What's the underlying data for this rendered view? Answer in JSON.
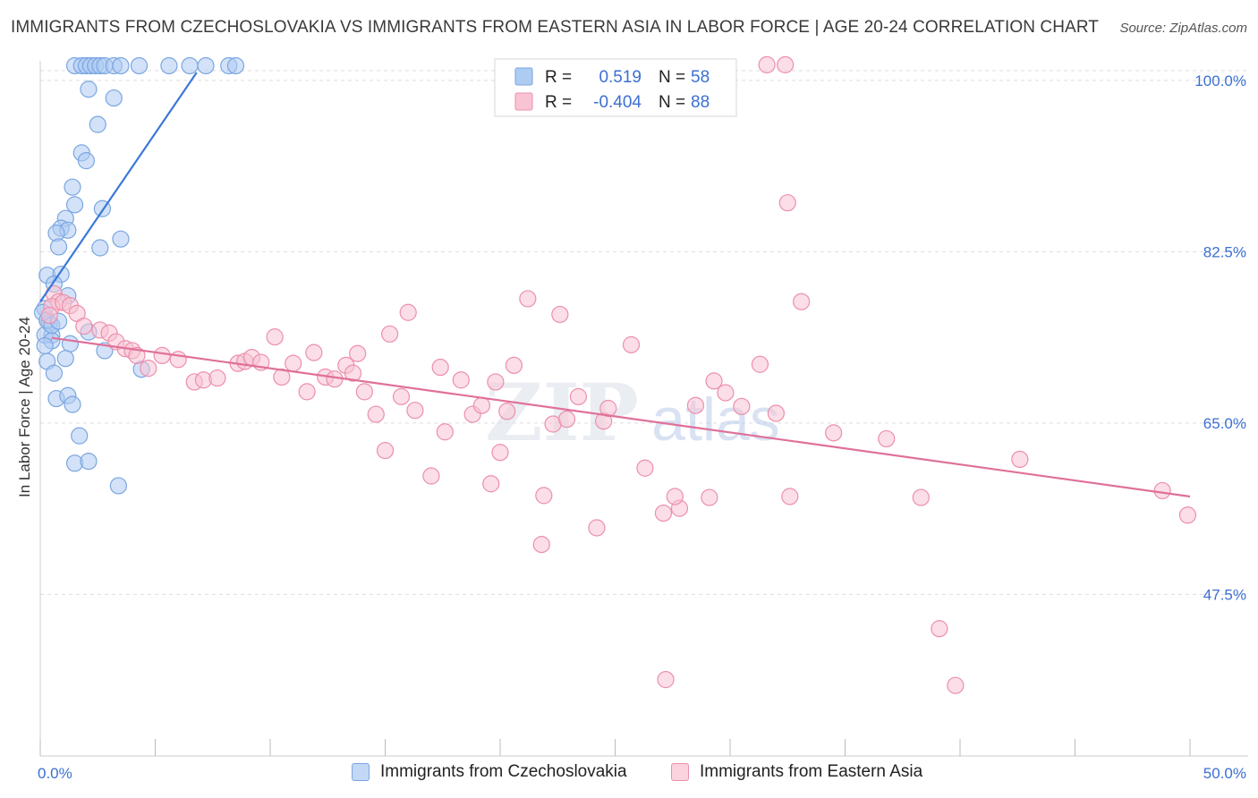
{
  "title": "IMMIGRANTS FROM CZECHOSLOVAKIA VS IMMIGRANTS FROM EASTERN ASIA IN LABOR FORCE | AGE 20-24 CORRELATION CHART",
  "source": "Source: ZipAtlas.com",
  "watermark": {
    "zip": "ZIP",
    "atlas": "atlas"
  },
  "legend": {
    "r_label": "R =",
    "n_label": "N =",
    "rows": [
      {
        "r": "0.519",
        "n": "58",
        "fill": "#aecbf2",
        "stroke": "#7aa6e0"
      },
      {
        "r": "-0.404",
        "n": "88",
        "fill": "#f8c3d3",
        "stroke": "#ec8fac"
      }
    ]
  },
  "bottom_legend": [
    {
      "label": "Immigrants from Czechoslovakia",
      "fill": "#c3d8f5",
      "stroke": "#7aa6e0"
    },
    {
      "label": "Immigrants from Eastern Asia",
      "fill": "#fbd3df",
      "stroke": "#ec8fac"
    }
  ],
  "chart_data": {
    "type": "scatter",
    "title": "IMMIGRANTS FROM CZECHOSLOVAKIA VS IMMIGRANTS FROM EASTERN ASIA IN LABOR FORCE | AGE 20-24 CORRELATION CHART",
    "xlabel": "",
    "ylabel": "In Labor Force | Age 20-24",
    "xlim": [
      0,
      50
    ],
    "ylim": [
      31,
      102
    ],
    "x_tick_labels": [
      "0.0%",
      "50.0%"
    ],
    "y_ticks": [
      47.5,
      65.0,
      82.5,
      100.0
    ],
    "y_tick_labels": [
      "47.5%",
      "65.0%",
      "82.5%",
      "100.0%"
    ],
    "grid": true,
    "legend_position": "top-center",
    "colors": {
      "czechoslovakia": "#3b78d8",
      "eastern_asia": "#e0709a",
      "axis_text": "#3b6fd0"
    },
    "series": [
      {
        "name": "Immigrants from Czechoslovakia",
        "r": 0.519,
        "n": 58,
        "trend": {
          "x": [
            0.0,
            6.8
          ],
          "y": [
            77.4,
            100.8
          ]
        },
        "points": [
          [
            1.5,
            101.5
          ],
          [
            1.8,
            101.5
          ],
          [
            2.0,
            101.5
          ],
          [
            2.2,
            101.5
          ],
          [
            2.4,
            101.5
          ],
          [
            2.6,
            101.5
          ],
          [
            2.8,
            101.5
          ],
          [
            3.2,
            101.5
          ],
          [
            3.5,
            101.5
          ],
          [
            4.3,
            101.5
          ],
          [
            5.6,
            101.5
          ],
          [
            6.5,
            101.5
          ],
          [
            7.2,
            101.5
          ],
          [
            8.2,
            101.5
          ],
          [
            8.5,
            101.5
          ],
          [
            2.1,
            99.1
          ],
          [
            3.2,
            98.2
          ],
          [
            2.5,
            95.5
          ],
          [
            1.8,
            92.6
          ],
          [
            2.0,
            91.8
          ],
          [
            1.4,
            89.1
          ],
          [
            1.5,
            87.3
          ],
          [
            2.7,
            86.9
          ],
          [
            1.1,
            85.9
          ],
          [
            0.9,
            84.9
          ],
          [
            1.2,
            84.7
          ],
          [
            0.7,
            84.4
          ],
          [
            3.5,
            83.8
          ],
          [
            0.8,
            83.0
          ],
          [
            2.6,
            82.9
          ],
          [
            0.3,
            80.1
          ],
          [
            0.9,
            80.2
          ],
          [
            0.6,
            79.2
          ],
          [
            1.2,
            78.0
          ],
          [
            0.2,
            76.7
          ],
          [
            0.1,
            76.3
          ],
          [
            0.4,
            75.2
          ],
          [
            2.1,
            74.3
          ],
          [
            0.5,
            74.0
          ],
          [
            0.2,
            74.0
          ],
          [
            0.5,
            73.4
          ],
          [
            1.3,
            73.1
          ],
          [
            2.8,
            72.4
          ],
          [
            1.1,
            71.6
          ],
          [
            0.3,
            71.3
          ],
          [
            0.6,
            70.1
          ],
          [
            4.4,
            70.5
          ],
          [
            0.7,
            67.5
          ],
          [
            1.2,
            67.8
          ],
          [
            1.4,
            66.9
          ],
          [
            1.7,
            63.7
          ],
          [
            1.5,
            60.9
          ],
          [
            2.1,
            61.1
          ],
          [
            3.4,
            58.6
          ],
          [
            0.3,
            75.5
          ],
          [
            0.5,
            75.0
          ],
          [
            0.2,
            72.9
          ],
          [
            0.8,
            75.4
          ]
        ]
      },
      {
        "name": "Immigrants from Eastern Asia",
        "r": -0.404,
        "n": 88,
        "trend": {
          "x": [
            0.5,
            50.0
          ],
          "y": [
            73.7,
            57.5
          ]
        },
        "points": [
          [
            31.6,
            101.6
          ],
          [
            32.4,
            101.6
          ],
          [
            0.6,
            78.2
          ],
          [
            0.8,
            77.4
          ],
          [
            0.5,
            76.9
          ],
          [
            1.0,
            77.3
          ],
          [
            1.3,
            77.0
          ],
          [
            1.6,
            76.2
          ],
          [
            0.4,
            76.0
          ],
          [
            1.9,
            74.9
          ],
          [
            2.6,
            74.5
          ],
          [
            3.0,
            74.2
          ],
          [
            3.3,
            73.3
          ],
          [
            3.7,
            72.6
          ],
          [
            4.0,
            72.4
          ],
          [
            4.2,
            71.9
          ],
          [
            4.7,
            70.6
          ],
          [
            5.3,
            71.9
          ],
          [
            6.0,
            71.5
          ],
          [
            6.7,
            69.2
          ],
          [
            7.1,
            69.4
          ],
          [
            7.7,
            69.6
          ],
          [
            8.6,
            71.1
          ],
          [
            8.9,
            71.3
          ],
          [
            9.2,
            71.7
          ],
          [
            9.6,
            71.2
          ],
          [
            10.2,
            73.8
          ],
          [
            10.5,
            69.7
          ],
          [
            11.0,
            71.1
          ],
          [
            11.6,
            68.2
          ],
          [
            11.9,
            72.2
          ],
          [
            12.4,
            69.7
          ],
          [
            12.8,
            69.5
          ],
          [
            13.3,
            70.9
          ],
          [
            13.6,
            70.1
          ],
          [
            13.8,
            72.1
          ],
          [
            14.1,
            68.2
          ],
          [
            15.2,
            74.1
          ],
          [
            14.6,
            65.9
          ],
          [
            15.0,
            62.2
          ],
          [
            15.7,
            67.7
          ],
          [
            16.0,
            76.3
          ],
          [
            16.3,
            66.3
          ],
          [
            17.4,
            70.7
          ],
          [
            17.6,
            64.1
          ],
          [
            17.0,
            59.6
          ],
          [
            18.3,
            69.4
          ],
          [
            18.8,
            65.9
          ],
          [
            19.2,
            66.8
          ],
          [
            19.8,
            69.2
          ],
          [
            20.3,
            66.2
          ],
          [
            20.6,
            70.9
          ],
          [
            19.6,
            58.8
          ],
          [
            21.2,
            77.7
          ],
          [
            21.9,
            57.6
          ],
          [
            21.8,
            52.6
          ],
          [
            22.3,
            64.9
          ],
          [
            22.9,
            65.4
          ],
          [
            22.6,
            76.1
          ],
          [
            23.4,
            67.7
          ],
          [
            24.2,
            54.3
          ],
          [
            24.5,
            65.2
          ],
          [
            24.7,
            66.5
          ],
          [
            25.7,
            73.0
          ],
          [
            26.3,
            60.4
          ],
          [
            27.1,
            55.8
          ],
          [
            27.8,
            56.3
          ],
          [
            27.6,
            57.5
          ],
          [
            28.5,
            66.8
          ],
          [
            29.1,
            57.4
          ],
          [
            29.3,
            69.3
          ],
          [
            29.8,
            68.1
          ],
          [
            30.5,
            66.7
          ],
          [
            32.5,
            87.5
          ],
          [
            32.6,
            57.5
          ],
          [
            33.1,
            77.4
          ],
          [
            36.8,
            63.4
          ],
          [
            38.3,
            57.4
          ],
          [
            39.1,
            44.0
          ],
          [
            39.8,
            38.2
          ],
          [
            42.6,
            61.3
          ],
          [
            48.8,
            58.1
          ],
          [
            49.9,
            55.6
          ],
          [
            27.2,
            38.8
          ],
          [
            31.3,
            71.0
          ],
          [
            32.0,
            66.0
          ],
          [
            34.5,
            64.0
          ],
          [
            20.0,
            62.0
          ]
        ]
      }
    ]
  }
}
